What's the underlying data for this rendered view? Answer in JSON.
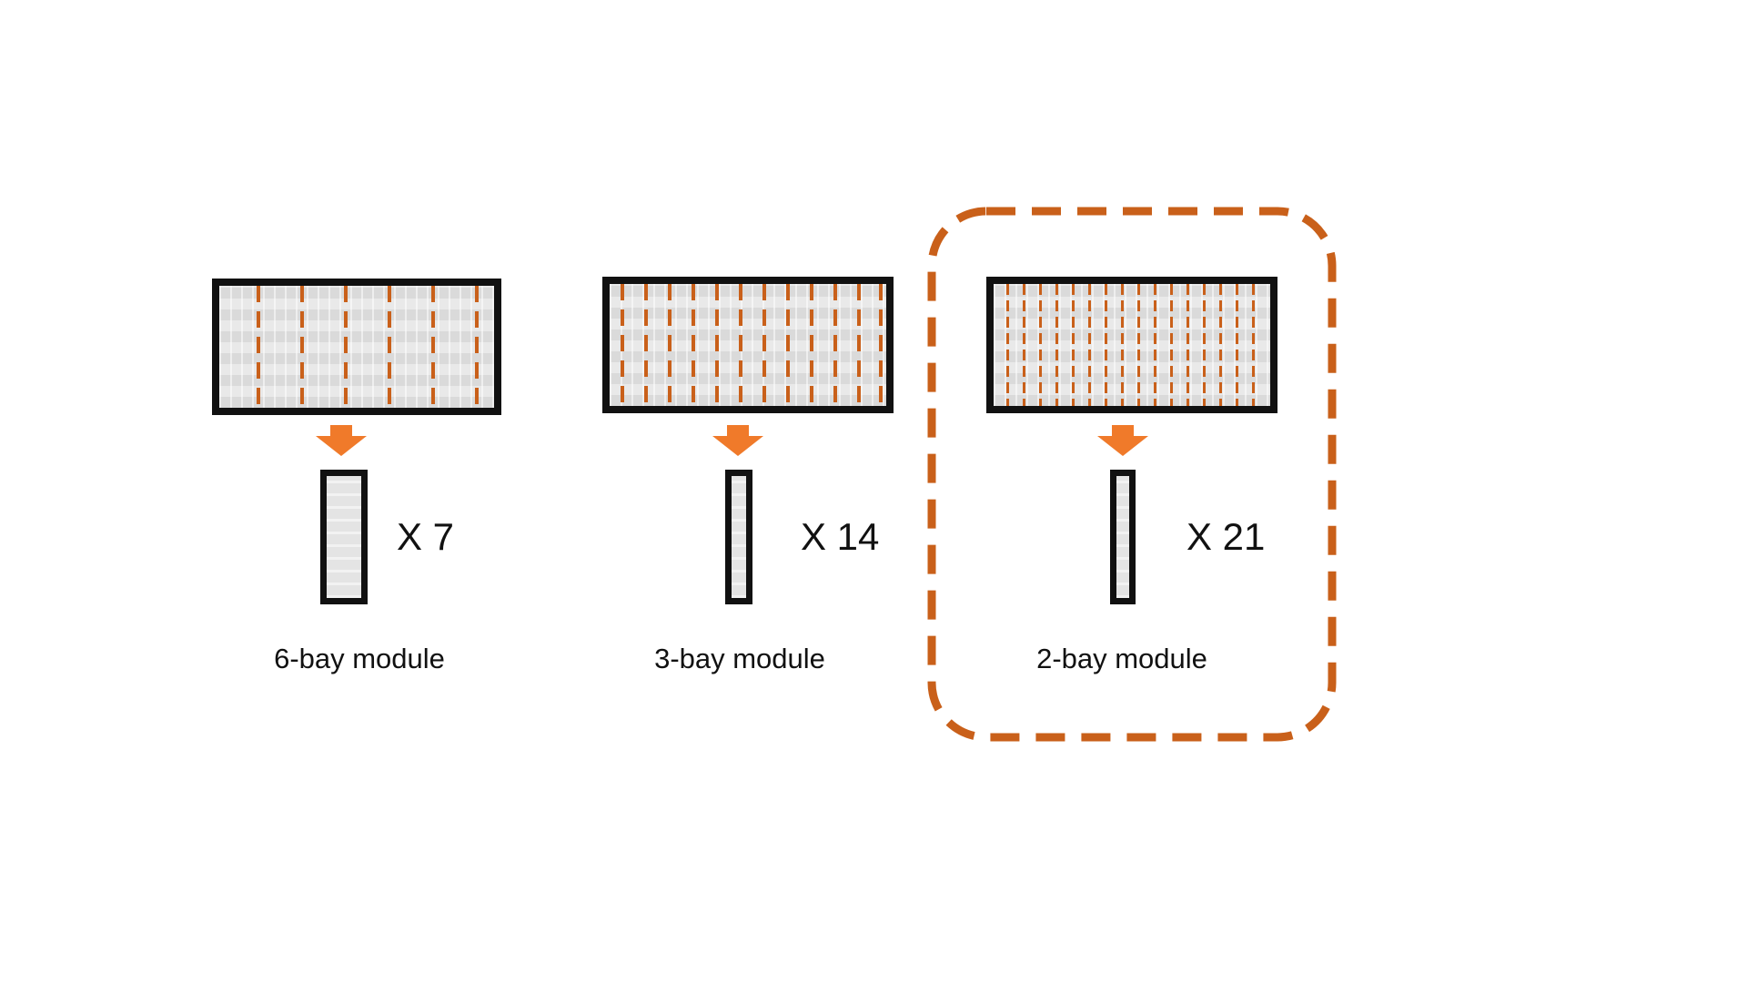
{
  "accent_color": "#c9601a",
  "modules": [
    {
      "label": "6-bay module",
      "count_text": "X 7",
      "bays": 6,
      "strip_icon": "module-strip-icon"
    },
    {
      "label": "3-bay module",
      "count_text": "X 14",
      "bays": 3,
      "strip_icon": "module-strip-icon"
    },
    {
      "label": "2-bay module",
      "count_text": "X 21",
      "bays": 2,
      "strip_icon": "module-strip-icon",
      "highlighted": true
    }
  ]
}
